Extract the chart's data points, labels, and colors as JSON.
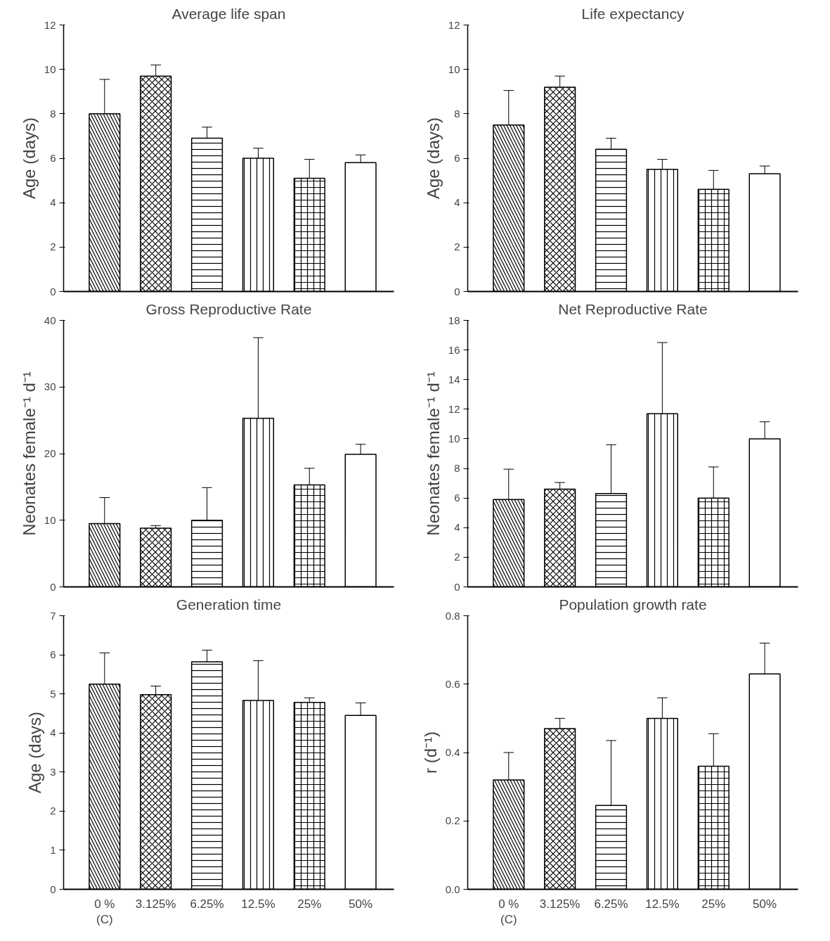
{
  "chart_data": [
    {
      "type": "bar",
      "title": "Average life span",
      "ylabel": "Age (days)",
      "categories": [
        null,
        null,
        null,
        null,
        null,
        null
      ],
      "color": "#ffffff",
      "ylim": [
        0,
        12
      ],
      "yticks": [
        0,
        2,
        4,
        6,
        8,
        10,
        12
      ],
      "values": [
        8.0,
        9.7,
        6.9,
        6.0,
        5.1,
        5.8
      ],
      "errors": [
        [
          8.0,
          9.55
        ],
        [
          9.7,
          10.2
        ],
        [
          6.9,
          7.4
        ],
        [
          6.0,
          6.45
        ],
        [
          5.1,
          5.95
        ],
        [
          5.8,
          6.15
        ]
      ]
    },
    {
      "type": "bar",
      "title": "Life expectancy",
      "ylabel": "Age (days)",
      "categories": [
        null,
        null,
        null,
        null,
        null,
        null
      ],
      "color": "#ffffff",
      "ylim": [
        0,
        12
      ],
      "yticks": [
        0,
        2,
        4,
        6,
        8,
        10,
        12
      ],
      "values": [
        7.5,
        9.2,
        6.4,
        5.5,
        4.6,
        5.3
      ],
      "errors": [
        [
          7.5,
          9.05
        ],
        [
          9.2,
          9.7
        ],
        [
          6.4,
          6.9
        ],
        [
          5.5,
          5.95
        ],
        [
          4.6,
          5.45
        ],
        [
          5.3,
          5.65
        ]
      ]
    },
    {
      "type": "bar",
      "title": "Gross Reproductive Rate",
      "ylabel": "Neonates female⁻¹ d⁻¹",
      "categories": [
        null,
        null,
        null,
        null,
        null,
        null
      ],
      "color": "#ffffff",
      "ylim": [
        0,
        40
      ],
      "yticks": [
        0,
        10,
        20,
        30,
        40
      ],
      "values": [
        9.5,
        8.8,
        10.0,
        25.3,
        15.3,
        19.9
      ],
      "errors": [
        [
          9.5,
          13.4
        ],
        [
          8.8,
          9.2
        ],
        [
          10.0,
          14.9
        ],
        [
          25.3,
          37.4
        ],
        [
          15.3,
          17.8
        ],
        [
          19.9,
          21.4
        ]
      ]
    },
    {
      "type": "bar",
      "title": "Net Reproductive Rate",
      "ylabel": "Neonates female⁻¹ d⁻¹",
      "categories": [
        null,
        null,
        null,
        null,
        null,
        null
      ],
      "color": "#ffffff",
      "ylim": [
        0,
        18
      ],
      "yticks": [
        0,
        2,
        4,
        6,
        8,
        10,
        12,
        14,
        16,
        18
      ],
      "values": [
        5.9,
        6.6,
        6.3,
        11.7,
        6.0,
        10.0
      ],
      "errors": [
        [
          5.9,
          7.95
        ],
        [
          6.6,
          7.05
        ],
        [
          6.3,
          9.6
        ],
        [
          11.7,
          16.5
        ],
        [
          6.0,
          8.1
        ],
        [
          10.0,
          11.15
        ]
      ]
    },
    {
      "type": "bar",
      "title": "Generation time",
      "ylabel": "Age (days)",
      "categories": [
        "0 %\n(C)",
        "3.125%",
        "6.25%",
        "12.5%",
        "25%",
        "50%"
      ],
      "color": "#ffffff",
      "ylim": [
        0,
        7
      ],
      "yticks": [
        0,
        1,
        2,
        3,
        4,
        5,
        6,
        7
      ],
      "values": [
        5.25,
        4.98,
        5.82,
        4.83,
        4.78,
        4.45
      ],
      "errors": [
        [
          5.25,
          6.05
        ],
        [
          4.98,
          5.2
        ],
        [
          5.82,
          6.12
        ],
        [
          4.83,
          5.85
        ],
        [
          4.78,
          4.9
        ],
        [
          4.45,
          4.77
        ]
      ]
    },
    {
      "type": "bar",
      "title": "Population growth rate",
      "ylabel": "r (d⁻¹)",
      "categories": [
        "0 %\n(C)",
        "3.125%",
        "6.25%",
        "12.5%",
        "25%",
        "50%"
      ],
      "color": "#ffffff",
      "ylim": [
        0,
        0.8
      ],
      "yticks": [
        {
          "value": 0,
          "label": "0.0"
        },
        0.2,
        0.4,
        0.6,
        0.8
      ],
      "values": [
        0.32,
        0.47,
        0.245,
        0.5,
        0.36,
        0.63
      ],
      "errors": [
        [
          0.32,
          0.4
        ],
        [
          0.47,
          0.5
        ],
        [
          0.245,
          0.435
        ],
        [
          0.5,
          0.56
        ],
        [
          0.36,
          0.455
        ],
        [
          0.63,
          0.72
        ]
      ]
    }
  ]
}
